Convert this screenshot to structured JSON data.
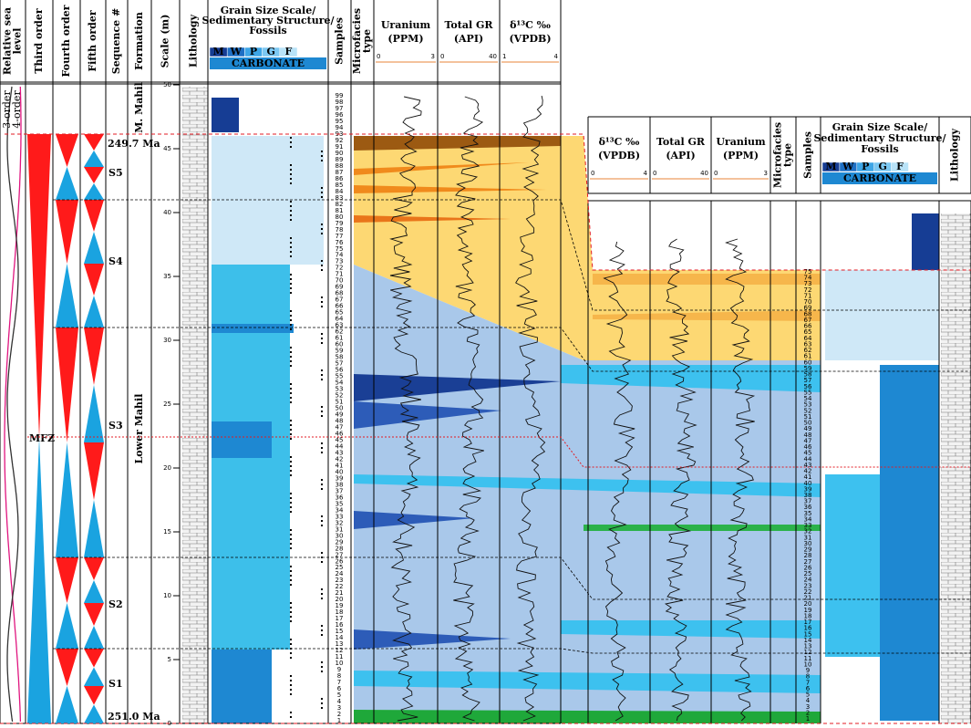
{
  "left_headers": [
    [
      "Relative sea",
      "level"
    ],
    [
      "Third order"
    ],
    [
      "Fourth order"
    ],
    [
      "Fifth order"
    ],
    [
      "Sequence #"
    ],
    [
      "Formation"
    ],
    [
      "Scale (m)"
    ],
    [
      "Lithology"
    ],
    [
      "Grain Size Scale/",
      "Sedimentary Structure/",
      "Fossils"
    ],
    [
      "Samples"
    ],
    [
      "Microfacies",
      "type"
    ],
    [
      "Uranium",
      "(PPM)"
    ],
    [
      "Total GR",
      "(API)"
    ],
    [
      "δ¹³C ‰",
      "(VPDB)"
    ]
  ],
  "left_curve_scales": [
    [
      0,
      3
    ],
    [
      0,
      40
    ],
    [
      1,
      4
    ]
  ],
  "right_headers": [
    [
      "δ¹³C ‰",
      "(VPDB)"
    ],
    [
      "Total GR",
      "(API)"
    ],
    [
      "Uranium",
      "(PPM)"
    ],
    [
      "Microfacies",
      "type"
    ],
    [
      "Samples"
    ],
    [
      "Grain Size Scale/",
      "Sedimentary Structure/",
      "Fossils"
    ],
    [
      "Lithology"
    ]
  ],
  "right_curve_scales": [
    [
      0,
      4
    ],
    [
      0,
      40
    ],
    [
      0,
      3
    ]
  ],
  "grain_codes": [
    "M",
    "W",
    "P",
    "G",
    "F"
  ],
  "carbonate": "CARBONATE",
  "sea_level_orders": [
    "3-order",
    "4-order"
  ],
  "sequences": [
    "S5",
    "S4",
    "S3",
    "S2",
    "S1"
  ],
  "formations": [
    "M. Mahil",
    "Lower Mahil"
  ],
  "ages": [
    "249.7 Ma",
    "251.0 Ma"
  ],
  "mfz": "MFZ",
  "scale_ticks": [
    0,
    5,
    10,
    15,
    20,
    25,
    30,
    35,
    40,
    45,
    50
  ],
  "left_samples": [
    1,
    2,
    3,
    4,
    5,
    6,
    7,
    8,
    9,
    10,
    11,
    12,
    13,
    14,
    15,
    16,
    17,
    18,
    19,
    20,
    21,
    22,
    23,
    24,
    25,
    26,
    27,
    28,
    29,
    30,
    31,
    32,
    33,
    34,
    35,
    36,
    37,
    38,
    39,
    40,
    41,
    42,
    43,
    44,
    45,
    46,
    47,
    48,
    49,
    50,
    51,
    52,
    53,
    54,
    55,
    56,
    57,
    58,
    59,
    60,
    61,
    62,
    63,
    64,
    65,
    66,
    67,
    68,
    69,
    70,
    71,
    72,
    73,
    74,
    75,
    76,
    77,
    78,
    79,
    80,
    81,
    82,
    83,
    84,
    85,
    86,
    87,
    88,
    89,
    90,
    91,
    92,
    93,
    94,
    95,
    96,
    97,
    98,
    99
  ],
  "right_samples": [
    1,
    2,
    3,
    4,
    5,
    6,
    7,
    8,
    9,
    10,
    11,
    12,
    13,
    14,
    15,
    16,
    17,
    18,
    19,
    20,
    21,
    22,
    23,
    24,
    25,
    26,
    27,
    28,
    29,
    30,
    31,
    32,
    33,
    34,
    35,
    36,
    37,
    38,
    39,
    40,
    41,
    42,
    43,
    44,
    45,
    46,
    47,
    48,
    49,
    50,
    51,
    52,
    53,
    54,
    55,
    56,
    57,
    58,
    59,
    60,
    61,
    62,
    63,
    64,
    65,
    66,
    67,
    68,
    69,
    70,
    71,
    72,
    73,
    74,
    75
  ]
}
